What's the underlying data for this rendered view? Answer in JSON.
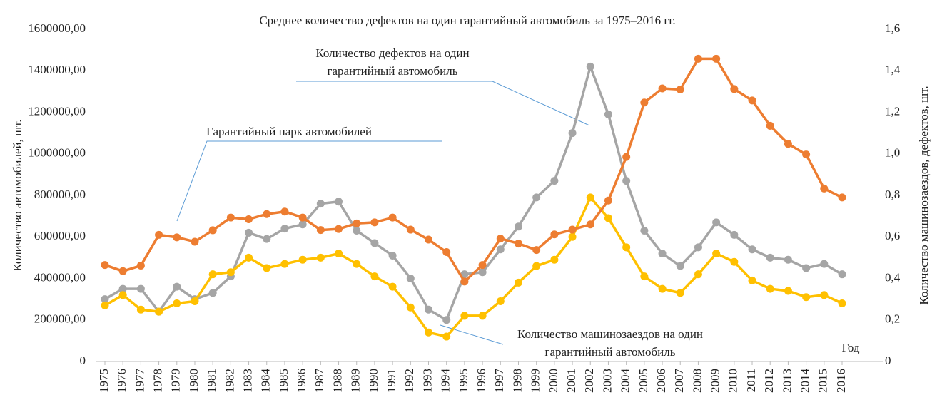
{
  "chart_data": {
    "type": "line",
    "title": "Среднее количество дефектов на один гарантийный автомобиль за 1975–2016 гг.",
    "x_label": "Год",
    "y_label": "Количество автомобилей, шт.",
    "y2_label": "Количество машинозаездов, дефектов, шт.",
    "x": [
      1975,
      1976,
      1977,
      1978,
      1979,
      1980,
      1981,
      1982,
      1983,
      1984,
      1985,
      1986,
      1987,
      1988,
      1989,
      1990,
      1991,
      1992,
      1993,
      1994,
      1995,
      1996,
      1997,
      1998,
      1999,
      2000,
      2001,
      2002,
      2003,
      2004,
      2005,
      2006,
      2007,
      2008,
      2009,
      2010,
      2011,
      2012,
      2013,
      2014,
      2015,
      2016
    ],
    "ylim": [
      0,
      1600000
    ],
    "yticks": [
      0,
      {
        "value": 200000,
        "label": "200000,00"
      },
      {
        "value": 400000,
        "label": "400000,00"
      },
      {
        "value": 600000,
        "label": "600000,00"
      },
      {
        "value": 800000,
        "label": "800000,00"
      },
      {
        "value": 1000000,
        "label": "1000000,00"
      },
      {
        "value": 1200000,
        "label": "1200000,00"
      },
      {
        "value": 1400000,
        "label": "1400000,00"
      },
      {
        "value": 1600000,
        "label": "1600000,00"
      }
    ],
    "y2lim": [
      0,
      1.6
    ],
    "y2ticks": [
      0,
      {
        "value": 0.2,
        "label": "0,2"
      },
      {
        "value": 0.4,
        "label": "0,4"
      },
      {
        "value": 0.6,
        "label": "0,6"
      },
      {
        "value": 0.8,
        "label": "0,8"
      },
      {
        "value": 1.0,
        "label": "1,0"
      },
      {
        "value": 1.2,
        "label": "1,2"
      },
      {
        "value": 1.4,
        "label": "1,4"
      },
      {
        "value": 1.6,
        "label": "1,6"
      }
    ],
    "grid": false,
    "series": [
      {
        "name": "Гарантийный парк автомобилей",
        "color": "#ED7D31",
        "axis": "y",
        "values": [
          465000,
          435000,
          462000,
          610000,
          598000,
          577000,
          632000,
          693000,
          685000,
          710000,
          722000,
          693000,
          633000,
          638000,
          665000,
          670000,
          693000,
          635000,
          587000,
          527000,
          385000,
          465000,
          592000,
          568000,
          537000,
          612000,
          635000,
          660000,
          775000,
          985000,
          1247000,
          1315000,
          1310000,
          1458000,
          1458000,
          1312000,
          1257000,
          1135000,
          1048000,
          997000,
          833000,
          790000
        ]
      },
      {
        "name": "Количество дефектов на один гарантийный автомобиль",
        "color": "#A5A5A5",
        "axis": "y2",
        "values": [
          0.3,
          0.35,
          0.35,
          0.24,
          0.36,
          0.3,
          0.33,
          0.41,
          0.62,
          0.59,
          0.64,
          0.66,
          0.76,
          0.77,
          0.63,
          0.57,
          0.51,
          0.4,
          0.25,
          0.2,
          0.42,
          0.43,
          0.54,
          0.65,
          0.79,
          0.87,
          1.1,
          1.42,
          1.19,
          0.87,
          0.63,
          0.52,
          0.46,
          0.55,
          0.67,
          0.61,
          0.54,
          0.5,
          0.49,
          0.45,
          0.47,
          0.42
        ]
      },
      {
        "name": "Количество машинозаездов на один гарантийный автомобиль",
        "color": "#FFC000",
        "axis": "y2",
        "values": [
          0.27,
          0.32,
          0.25,
          0.24,
          0.28,
          0.29,
          0.42,
          0.43,
          0.5,
          0.45,
          0.47,
          0.49,
          0.5,
          0.52,
          0.47,
          0.41,
          0.36,
          0.26,
          0.14,
          0.12,
          0.22,
          0.22,
          0.29,
          0.38,
          0.46,
          0.49,
          0.6,
          0.79,
          0.69,
          0.55,
          0.41,
          0.35,
          0.33,
          0.42,
          0.52,
          0.48,
          0.39,
          0.35,
          0.34,
          0.31,
          0.32,
          0.28
        ]
      }
    ]
  }
}
